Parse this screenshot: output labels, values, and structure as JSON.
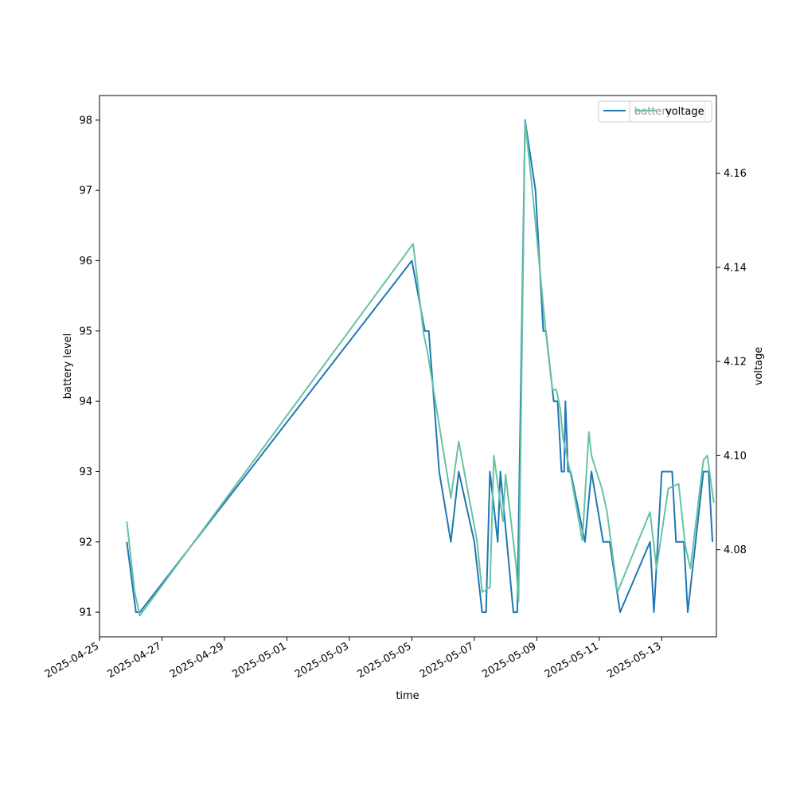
{
  "chart_data": {
    "type": "line",
    "xlabel": "time",
    "ylabel": "battery level",
    "y2label": "voltage",
    "xlim": [
      "2025-04-25",
      "2025-05-14 18:00"
    ],
    "ylim": [
      90.65,
      98.35
    ],
    "y2lim": [
      4.0615,
      4.1765
    ],
    "x_ticks": [
      "2025-04-25",
      "2025-04-27",
      "2025-04-29",
      "2025-05-01",
      "2025-05-03",
      "2025-05-05",
      "2025-05-07",
      "2025-05-09",
      "2025-05-11",
      "2025-05-13"
    ],
    "y_ticks": [
      91,
      92,
      93,
      94,
      95,
      96,
      97,
      98
    ],
    "y2_ticks": [
      "4.08",
      "4.10",
      "4.12",
      "4.14",
      "4.16"
    ],
    "legend": {
      "placement": "top-right"
    },
    "colors": {
      "battery": "#1f77b4",
      "voltage": "#66c2a5"
    },
    "series": [
      {
        "name": "battery",
        "axis": "left",
        "points": [
          [
            "2025-04-25 21:00",
            92
          ],
          [
            "2025-04-26 04:00",
            91
          ],
          [
            "2025-04-26 07:00",
            91
          ],
          [
            "2025-05-05 00:00",
            96
          ],
          [
            "2025-05-05 10:00",
            95
          ],
          [
            "2025-05-05 13:00",
            95
          ],
          [
            "2025-05-05 21:00",
            93
          ],
          [
            "2025-05-06 06:00",
            92
          ],
          [
            "2025-05-06 12:00",
            93
          ],
          [
            "2025-05-07 00:00",
            92
          ],
          [
            "2025-05-07 06:00",
            91
          ],
          [
            "2025-05-07 09:00",
            91
          ],
          [
            "2025-05-07 12:00",
            93
          ],
          [
            "2025-05-07 18:00",
            92
          ],
          [
            "2025-05-07 20:00",
            93
          ],
          [
            "2025-05-08 06:00",
            91
          ],
          [
            "2025-05-08 09:00",
            91
          ],
          [
            "2025-05-08 15:00",
            98
          ],
          [
            "2025-05-08 23:00",
            97
          ],
          [
            "2025-05-09 05:00",
            95
          ],
          [
            "2025-05-09 07:00",
            95
          ],
          [
            "2025-05-09 13:00",
            94
          ],
          [
            "2025-05-09 16:00",
            94
          ],
          [
            "2025-05-09 19:00",
            93
          ],
          [
            "2025-05-09 21:00",
            93
          ],
          [
            "2025-05-09 22:00",
            94
          ],
          [
            "2025-05-10 00:00",
            93
          ],
          [
            "2025-05-10 02:00",
            93
          ],
          [
            "2025-05-10 13:00",
            92
          ],
          [
            "2025-05-10 18:00",
            93
          ],
          [
            "2025-05-11 03:00",
            92
          ],
          [
            "2025-05-11 08:00",
            92
          ],
          [
            "2025-05-11 16:00",
            91
          ],
          [
            "2025-05-12 15:00",
            92
          ],
          [
            "2025-05-12 18:00",
            91
          ],
          [
            "2025-05-13 00:00",
            93
          ],
          [
            "2025-05-13 08:00",
            93
          ],
          [
            "2025-05-13 11:00",
            92
          ],
          [
            "2025-05-13 17:00",
            92
          ],
          [
            "2025-05-13 20:00",
            91
          ],
          [
            "2025-05-14 08:00",
            93
          ],
          [
            "2025-05-14 12:00",
            93
          ],
          [
            "2025-05-14 15:00",
            92
          ]
        ]
      },
      {
        "name": "voltage",
        "axis": "right",
        "points": [
          [
            "2025-04-25 21:00",
            4.086
          ],
          [
            "2025-04-26 03:00",
            4.071
          ],
          [
            "2025-04-26 07:00",
            4.066
          ],
          [
            "2025-05-05 01:00",
            4.145
          ],
          [
            "2025-05-05 09:00",
            4.126
          ],
          [
            "2025-05-05 12:00",
            4.122
          ],
          [
            "2025-05-06 06:00",
            4.091
          ],
          [
            "2025-05-06 12:00",
            4.103
          ],
          [
            "2025-05-07 02:00",
            4.082
          ],
          [
            "2025-05-07 06:00",
            4.071
          ],
          [
            "2025-05-07 12:00",
            4.072
          ],
          [
            "2025-05-07 15:00",
            4.1
          ],
          [
            "2025-05-07 22:00",
            4.086
          ],
          [
            "2025-05-08 00:00",
            4.096
          ],
          [
            "2025-05-08 08:00",
            4.077
          ],
          [
            "2025-05-08 10:00",
            4.069
          ],
          [
            "2025-05-08 15:00",
            4.171
          ],
          [
            "2025-05-08 20:00",
            4.158
          ],
          [
            "2025-05-09 07:00",
            4.126
          ],
          [
            "2025-05-09 12:00",
            4.114
          ],
          [
            "2025-05-09 15:00",
            4.114
          ],
          [
            "2025-05-09 18:00",
            4.11
          ],
          [
            "2025-05-09 20:00",
            4.104
          ],
          [
            "2025-05-10 02:00",
            4.096
          ],
          [
            "2025-05-10 11:00",
            4.082
          ],
          [
            "2025-05-10 16:00",
            4.105
          ],
          [
            "2025-05-10 18:00",
            4.1
          ],
          [
            "2025-05-11 02:00",
            4.093
          ],
          [
            "2025-05-11 06:00",
            4.088
          ],
          [
            "2025-05-11 14:00",
            4.071
          ],
          [
            "2025-05-12 15:00",
            4.088
          ],
          [
            "2025-05-12 20:00",
            4.076
          ],
          [
            "2025-05-13 05:00",
            4.093
          ],
          [
            "2025-05-13 13:00",
            4.094
          ],
          [
            "2025-05-13 18:00",
            4.081
          ],
          [
            "2025-05-13 22:00",
            4.076
          ],
          [
            "2025-05-14 08:00",
            4.099
          ],
          [
            "2025-05-14 11:00",
            4.1
          ],
          [
            "2025-05-14 16:00",
            4.09
          ]
        ]
      }
    ]
  }
}
